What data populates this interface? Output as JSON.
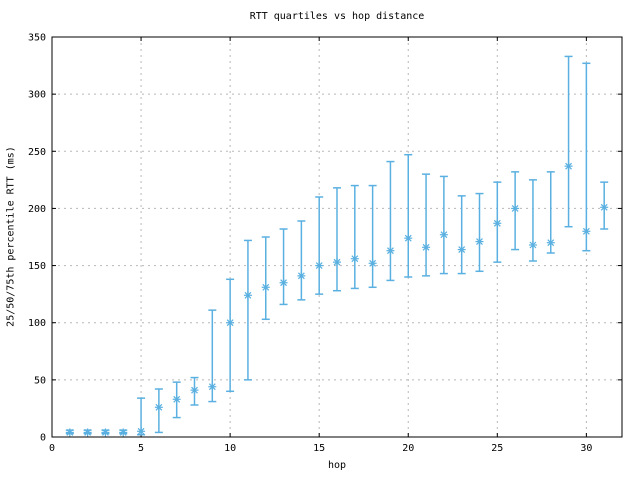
{
  "chart_data": {
    "type": "scatter",
    "subtype": "errorbars-quartiles",
    "title": "RTT quartiles vs hop distance",
    "xlabel": "hop",
    "ylabel": "25/50/75th percentile RTT (ms)",
    "xlim": [
      0,
      32
    ],
    "ylim": [
      0,
      350
    ],
    "xticks": [
      0,
      5,
      10,
      15,
      20,
      25,
      30
    ],
    "yticks": [
      0,
      50,
      100,
      150,
      200,
      250,
      300,
      350
    ],
    "grid": true,
    "legend_position": "none",
    "marker": "asterisk",
    "colors": {
      "series": "#5ab0e0",
      "grid": "#b8b8b8",
      "axis": "#000000",
      "background": "#ffffff"
    },
    "series": [
      {
        "name": "RTT quartiles",
        "x": [
          1,
          2,
          3,
          4,
          5,
          6,
          7,
          8,
          9,
          10,
          11,
          12,
          13,
          14,
          15,
          16,
          17,
          18,
          19,
          20,
          21,
          22,
          23,
          24,
          25,
          26,
          27,
          28,
          29,
          30,
          31
        ],
        "q25": [
          3,
          3,
          3,
          3,
          2,
          4,
          17,
          28,
          31,
          40,
          50,
          103,
          116,
          120,
          125,
          128,
          130,
          131,
          137,
          140,
          141,
          143,
          143,
          145,
          153,
          164,
          154,
          161,
          184,
          163,
          182
        ],
        "median": [
          4,
          4,
          4,
          4,
          5,
          26,
          33,
          41,
          44,
          100,
          124,
          131,
          135,
          141,
          150,
          153,
          156,
          152,
          163,
          174,
          166,
          177,
          164,
          171,
          187,
          200,
          168,
          170,
          237,
          180,
          201
        ],
        "q75": [
          6,
          6,
          6,
          6,
          34,
          42,
          48,
          52,
          111,
          138,
          172,
          175,
          182,
          189,
          210,
          218,
          220,
          220,
          241,
          247,
          230,
          228,
          211,
          213,
          223,
          232,
          225,
          232,
          333,
          327,
          223
        ]
      }
    ]
  }
}
